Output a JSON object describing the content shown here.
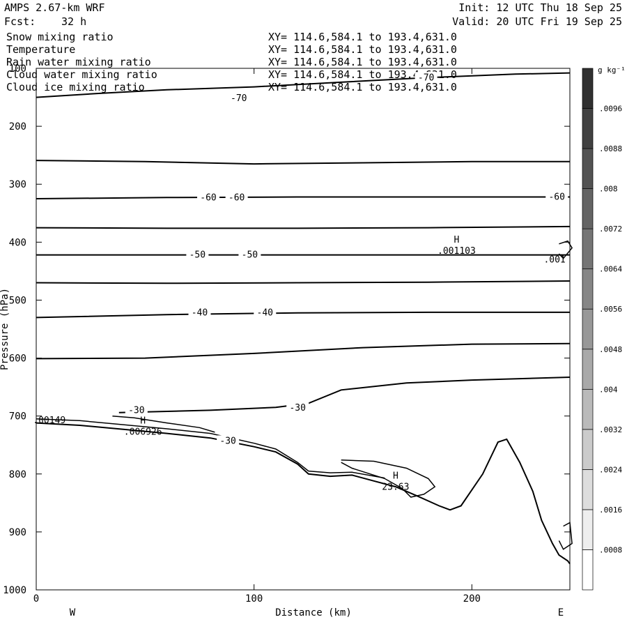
{
  "header": {
    "left_line1": "AMPS 2.67-km WRF",
    "left_line2_label": "Fcst:",
    "left_line2_value": "32 h",
    "right_line1": "Init: 12 UTC Thu 18 Sep 25",
    "right_line2": "Valid: 20 UTC Fri 19 Sep 25"
  },
  "fields": [
    {
      "name": "Snow mixing ratio",
      "xy": "XY= 114.6,584.1 to 193.4,631.0",
      "color": "#000000"
    },
    {
      "name": "Temperature",
      "xy": "XY= 114.6,584.1 to 193.4,631.0",
      "color": "#000000"
    },
    {
      "name": "Rain water mixing ratio",
      "xy": "XY= 114.6,584.1 to 193.4,631.0",
      "color": "#e00000"
    },
    {
      "name": "Cloud water mixing ratio",
      "xy": "XY= 114.6,584.1 to 193.4,631.0",
      "color": "#0000cc"
    },
    {
      "name": "Cloud ice mixing ratio",
      "xy": "XY= 114.6,584.1 to 193.4,631.0",
      "color": "#000000"
    }
  ],
  "chart_data": {
    "type": "contour cross-section",
    "xlabel": "Distance (km)",
    "ylabel": "Pressure (hPa)",
    "xlim": [
      0,
      245
    ],
    "ylim": [
      1000,
      100
    ],
    "x_ticks": [
      0,
      100,
      200
    ],
    "y_ticks": [
      100,
      200,
      300,
      400,
      500,
      600,
      700,
      800,
      900,
      1000
    ],
    "x_end_labels": {
      "left": "W",
      "right": "E"
    },
    "temperature_contours": [
      {
        "label": "-70",
        "points": [
          [
            0,
            150
          ],
          [
            30,
            143
          ],
          [
            60,
            137
          ],
          [
            100,
            132
          ],
          [
            140,
            124
          ],
          [
            180,
            116
          ],
          [
            220,
            110
          ],
          [
            245,
            108
          ]
        ]
      },
      {
        "label": "",
        "points": [
          [
            0,
            259
          ],
          [
            50,
            261
          ],
          [
            100,
            265
          ],
          [
            150,
            263
          ],
          [
            200,
            261
          ],
          [
            245,
            261
          ]
        ]
      },
      {
        "label": "-60",
        "points": [
          [
            0,
            325
          ],
          [
            60,
            323
          ],
          [
            120,
            322
          ],
          [
            180,
            322
          ],
          [
            245,
            322
          ]
        ]
      },
      {
        "label": "",
        "points": [
          [
            0,
            375
          ],
          [
            60,
            376
          ],
          [
            120,
            376
          ],
          [
            180,
            375
          ],
          [
            245,
            373
          ]
        ]
      },
      {
        "label": "-50",
        "points": [
          [
            0,
            422
          ],
          [
            60,
            422
          ],
          [
            120,
            422
          ],
          [
            180,
            422
          ],
          [
            245,
            422
          ]
        ]
      },
      {
        "label": "",
        "points": [
          [
            0,
            470
          ],
          [
            60,
            471
          ],
          [
            120,
            470
          ],
          [
            180,
            469
          ],
          [
            245,
            467
          ]
        ]
      },
      {
        "label": "-40",
        "points": [
          [
            0,
            530
          ],
          [
            60,
            525
          ],
          [
            120,
            522
          ],
          [
            180,
            521
          ],
          [
            245,
            521
          ]
        ]
      },
      {
        "label": "",
        "points": [
          [
            0,
            601
          ],
          [
            50,
            600
          ],
          [
            100,
            592
          ],
          [
            150,
            582
          ],
          [
            200,
            576
          ],
          [
            245,
            575
          ]
        ]
      },
      {
        "label": "-30",
        "points": [
          [
            38,
            694
          ],
          [
            80,
            690
          ],
          [
            110,
            685
          ],
          [
            125,
            678
          ],
          [
            140,
            655
          ],
          [
            170,
            643
          ],
          [
            200,
            638
          ],
          [
            245,
            633
          ]
        ]
      }
    ],
    "contour_label_positions": [
      {
        "label": "-70",
        "x": 93,
        "p": 152
      },
      {
        "label": "-70",
        "x": 179,
        "p": 116
      },
      {
        "label": "-60",
        "x": 79,
        "p": 323
      },
      {
        "label": "-60",
        "x": 92,
        "p": 323
      },
      {
        "label": "-60",
        "x": 239,
        "p": 322
      },
      {
        "label": "-50",
        "x": 74,
        "p": 422
      },
      {
        "label": "-50",
        "x": 98,
        "p": 422
      },
      {
        "label": "-40",
        "x": 75,
        "p": 522
      },
      {
        "label": "-40",
        "x": 105,
        "p": 522
      },
      {
        "label": "-30",
        "x": 120,
        "p": 686
      },
      {
        "label": "-30",
        "x": 46,
        "p": 690
      },
      {
        "label": "-30",
        "x": 88,
        "p": 743
      }
    ],
    "terrain": [
      [
        0,
        712
      ],
      [
        20,
        716
      ],
      [
        40,
        723
      ],
      [
        60,
        730
      ],
      [
        80,
        738
      ],
      [
        100,
        753
      ],
      [
        110,
        762
      ],
      [
        120,
        783
      ],
      [
        125,
        800
      ],
      [
        135,
        804
      ],
      [
        145,
        802
      ],
      [
        155,
        812
      ],
      [
        165,
        822
      ],
      [
        175,
        838
      ],
      [
        185,
        855
      ],
      [
        190,
        862
      ],
      [
        195,
        855
      ],
      [
        205,
        800
      ],
      [
        212,
        745
      ],
      [
        216,
        740
      ],
      [
        222,
        780
      ],
      [
        228,
        830
      ],
      [
        232,
        880
      ],
      [
        237,
        920
      ],
      [
        240,
        940
      ],
      [
        244,
        950
      ],
      [
        245,
        955
      ]
    ],
    "moisture_contours": [
      {
        "label": ".00149",
        "points": [
          [
            0,
            705
          ],
          [
            20,
            708
          ],
          [
            40,
            715
          ],
          [
            60,
            722
          ],
          [
            80,
            730
          ],
          [
            100,
            747
          ],
          [
            110,
            757
          ],
          [
            120,
            780
          ],
          [
            125,
            795
          ],
          [
            135,
            798
          ],
          [
            145,
            797
          ],
          [
            160,
            807
          ]
        ]
      },
      {
        "label": ".006926",
        "points": [
          [
            35,
            700
          ],
          [
            45,
            703
          ],
          [
            60,
            712
          ],
          [
            75,
            720
          ],
          [
            82,
            728
          ]
        ]
      },
      {
        "label": "23.63",
        "points": [
          [
            140,
            776
          ],
          [
            155,
            778
          ],
          [
            170,
            790
          ],
          [
            180,
            808
          ],
          [
            183,
            822
          ],
          [
            178,
            835
          ],
          [
            172,
            840
          ],
          [
            168,
            825
          ],
          [
            160,
            808
          ],
          [
            145,
            790
          ],
          [
            140,
            780
          ]
        ]
      },
      {
        "label": ".001",
        "points": [
          [
            240,
            403
          ],
          [
            244,
            398
          ],
          [
            246,
            410
          ],
          [
            242,
            428
          ],
          [
            240,
            420
          ]
        ]
      },
      {
        "label": "",
        "points": [
          [
            242,
            890
          ],
          [
            245,
            884
          ],
          [
            246,
            920
          ],
          [
            242,
            930
          ],
          [
            240,
            915
          ]
        ]
      }
    ],
    "extrema": [
      {
        "label": "H",
        "value": ".001103",
        "x": 193,
        "p": 413
      },
      {
        "label": "H",
        "value": ".006926",
        "x": 49,
        "p": 725
      },
      {
        "label": "H",
        "value": "23.63",
        "x": 165,
        "p": 820
      },
      {
        "label": "",
        "value": ".00149",
        "x": 6,
        "p": 705
      },
      {
        "label": "",
        "value": ".001",
        "x": 238,
        "p": 428
      }
    ],
    "colorbar": {
      "unit": "g kg⁻¹",
      "levels": [
        ".0008",
        ".0016",
        ".0024",
        ".0032",
        ".004",
        ".0048",
        ".0056",
        ".0064",
        ".0072",
        ".008",
        ".0088",
        ".0096"
      ],
      "color_low": "#ffffff",
      "color_high": "#303030"
    }
  }
}
